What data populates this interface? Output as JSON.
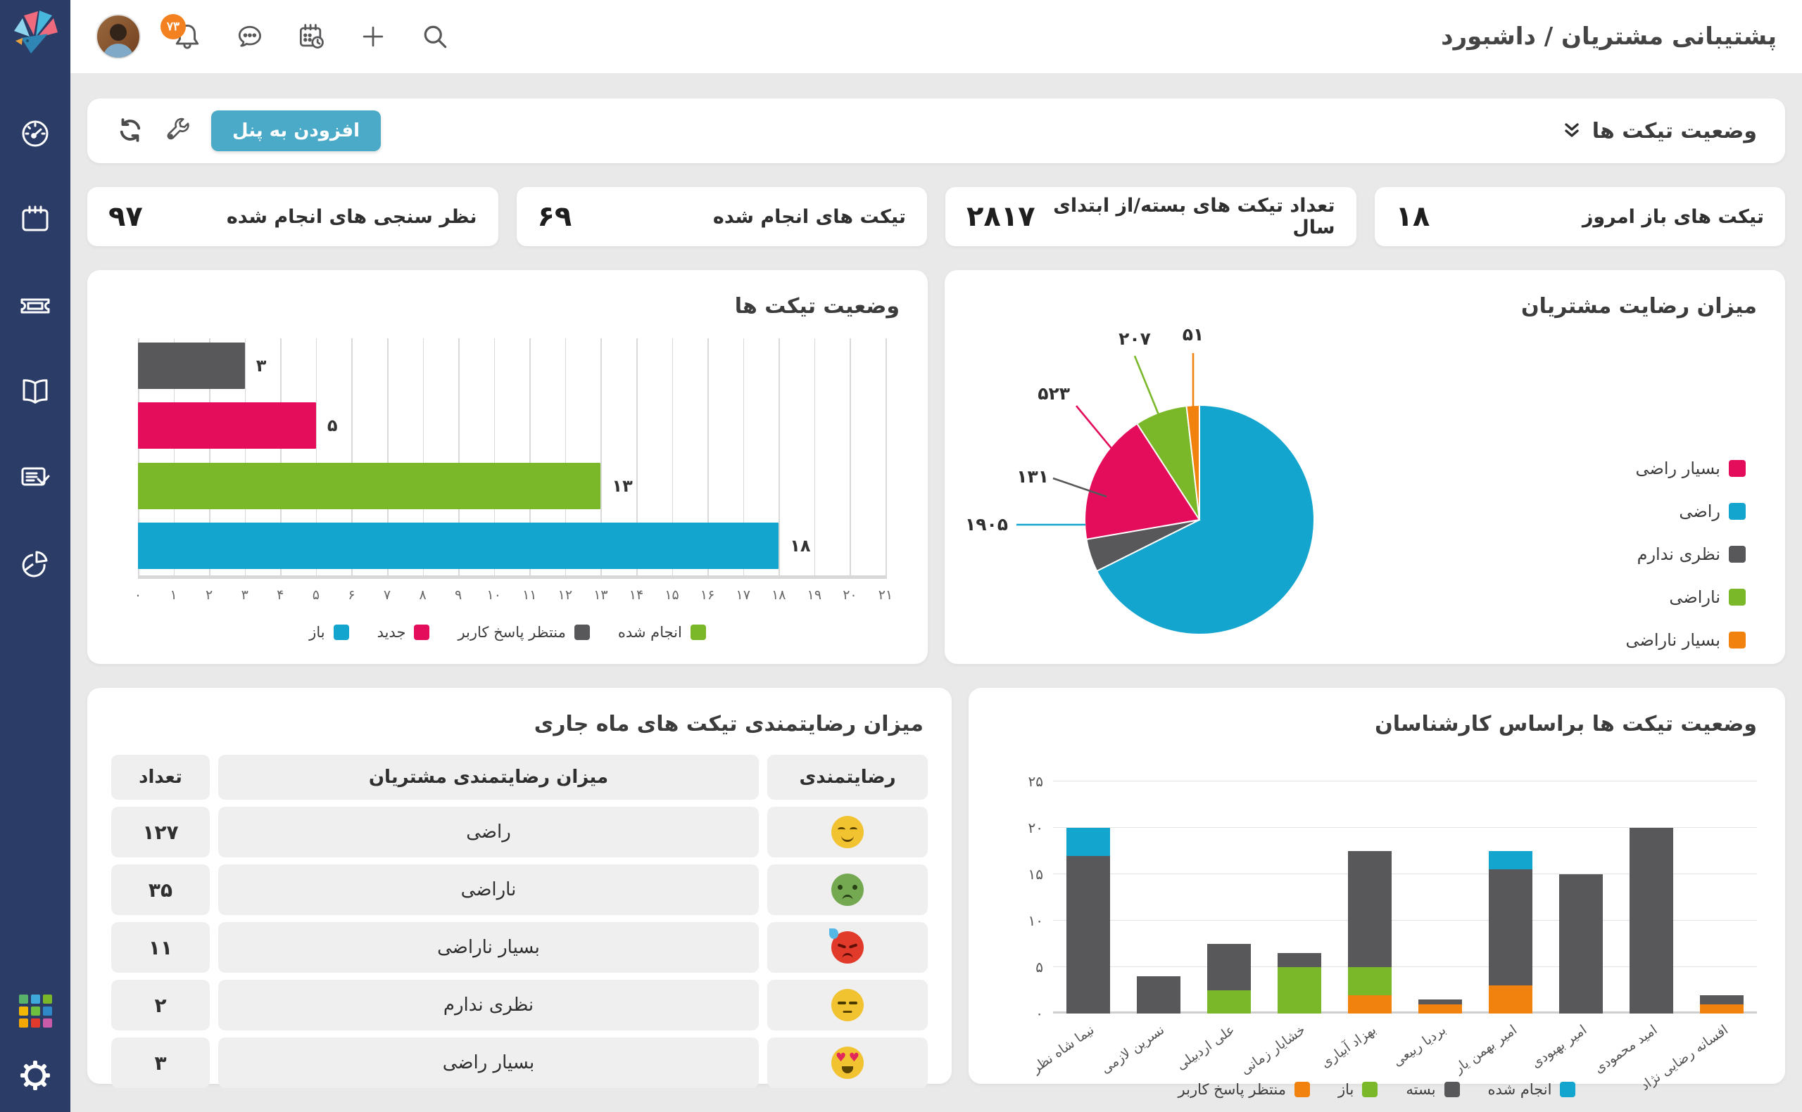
{
  "header": {
    "title": "پشتیبانی مشتریان / داشبورد",
    "notification_badge": "۷۳"
  },
  "toolbar": {
    "widget_title": "وضعیت تیکت ها",
    "add_to_panel_label": "افزودن به پنل"
  },
  "stat_cards": [
    {
      "label": "تیکت های باز امروز",
      "value": "۱۸"
    },
    {
      "label": "تعداد تیکت های بسته/از ابتدای سال",
      "value": "۲۸۱۷"
    },
    {
      "label": "تیکت های انجام شده",
      "value": "۶۹"
    },
    {
      "label": "نظر سنجی های انجام شده",
      "value": "۹۷"
    }
  ],
  "satisfaction_table": {
    "title": "میزان رضایتمندی تیکت های ماه جاری",
    "headers": [
      "رضایتمندی",
      "میزان رضایتمندی مشتریان",
      "تعداد"
    ],
    "rows": [
      {
        "emoji": "happy-face",
        "label": "راضی",
        "count": "۱۲۷"
      },
      {
        "emoji": "sad-green-face",
        "label": "ناراضی",
        "count": "۳۵"
      },
      {
        "emoji": "angry-red-face",
        "label": "بسیار ناراضی",
        "count": "۱۱"
      },
      {
        "emoji": "neutral-face",
        "label": "نظری ندارم",
        "count": "۲"
      },
      {
        "emoji": "heart-eyes-face",
        "label": "بسیار راضی",
        "count": "۳"
      }
    ]
  },
  "chart_data": [
    {
      "id": "ticket-status-bar",
      "type": "bar",
      "orientation": "horizontal",
      "title": "وضعیت تیکت ها",
      "categories": [
        "منتظر پاسخ کاربر",
        "جدید",
        "انجام شده",
        "باز"
      ],
      "values": [
        3,
        5,
        13,
        18
      ],
      "value_labels": [
        "۳",
        "۵",
        "۱۳",
        "۱۸"
      ],
      "bar_colors": [
        "#58585a",
        "#e40d5c",
        "#7ab829",
        "#14a5cf"
      ],
      "xlim": [
        0,
        21
      ],
      "x_ticks": [
        "۰",
        "۱",
        "۲",
        "۳",
        "۴",
        "۵",
        "۶",
        "۷",
        "۸",
        "۹",
        "۱۰",
        "۱۱",
        "۱۲",
        "۱۳",
        "۱۴",
        "۱۵",
        "۱۶",
        "۱۷",
        "۱۸",
        "۱۹",
        "۲۰",
        "۲۱"
      ],
      "grid": true,
      "legend": [
        {
          "label": "انجام شده",
          "color": "#7ab829"
        },
        {
          "label": "منتظر پاسخ کاربر",
          "color": "#58585a"
        },
        {
          "label": "جدید",
          "color": "#e40d5c"
        },
        {
          "label": "باز",
          "color": "#14a5cf"
        }
      ]
    },
    {
      "id": "customer-satisfaction-pie",
      "type": "pie",
      "title": "میزان رضایت مشتریان",
      "start_angle": "top",
      "direction": "clockwise",
      "slices": [
        {
          "label": "راضی",
          "value": 1905,
          "value_label": "۱۹۰۵",
          "color": "#14a5cf"
        },
        {
          "label": "نظری ندارم",
          "value": 131,
          "value_label": "۱۳۱",
          "color": "#58585a"
        },
        {
          "label": "بسیار راضی",
          "value": 523,
          "value_label": "۵۲۳",
          "color": "#e40d5c"
        },
        {
          "label": "ناراضی",
          "value": 207,
          "value_label": "۲۰۷",
          "color": "#7ab829"
        },
        {
          "label": "بسیار ناراضی",
          "value": 51,
          "value_label": "۵۱",
          "color": "#f0820d"
        }
      ],
      "legend": [
        {
          "label": "بسیار راضی",
          "color": "#e40d5c"
        },
        {
          "label": "راضی",
          "color": "#14a5cf"
        },
        {
          "label": "نظری ندارم",
          "color": "#58585a"
        },
        {
          "label": "ناراضی",
          "color": "#7ab829"
        },
        {
          "label": "بسیار ناراضی",
          "color": "#f0820d"
        }
      ]
    },
    {
      "id": "tickets-by-agent-stacked",
      "type": "stacked-bar",
      "title": "وضعیت تیکت ها براساس کارشناسان",
      "categories": [
        "نیما شاه نظر",
        "نسرین لازمی",
        "علی اردبیلی",
        "خشایار زمانی",
        "بهزاد آبیاری",
        "بردیا ربیعی",
        "امیر بهمن یار",
        "امیر بهبودی",
        "امید محمودی",
        "افسانه رضایی نژاد"
      ],
      "series": [
        {
          "name": "منتظر پاسخ کاربر",
          "color": "#f0820d",
          "values": [
            0,
            0,
            0,
            0,
            2,
            1,
            3,
            0,
            0,
            1
          ]
        },
        {
          "name": "باز",
          "color": "#7ab829",
          "values": [
            0,
            0,
            2.5,
            5,
            3,
            0,
            0,
            0,
            0,
            0
          ]
        },
        {
          "name": "بسته",
          "color": "#58585a",
          "values": [
            17,
            4,
            5,
            1.5,
            12.5,
            0.5,
            12.5,
            15,
            20,
            1
          ]
        },
        {
          "name": "انجام شده",
          "color": "#14a5cf",
          "values": [
            3,
            0,
            0,
            0,
            0,
            0,
            2,
            0,
            0,
            0
          ]
        }
      ],
      "ylim": [
        0,
        25
      ],
      "y_ticks": [
        "۰",
        "۵",
        "۱۰",
        "۱۵",
        "۲۰",
        "۲۵"
      ],
      "legend": [
        {
          "label": "انجام شده",
          "color": "#14a5cf"
        },
        {
          "label": "بسته",
          "color": "#58585a"
        },
        {
          "label": "باز",
          "color": "#7ab829"
        },
        {
          "label": "منتظر پاسخ کاربر",
          "color": "#f0820d"
        }
      ]
    }
  ],
  "sidebar": {
    "icons": [
      "dashboard-speedometer",
      "calendar",
      "ticket",
      "knowledge-book",
      "survey-form",
      "reports-pie"
    ],
    "bottom_icons": [
      "apps-grid",
      "settings-gear"
    ]
  },
  "colors": {
    "accent_teal": "#4aaac7",
    "sidebar_navy": "#2b3c66",
    "badge_orange": "#f4811f",
    "page_bg": "#e9e9e9"
  }
}
